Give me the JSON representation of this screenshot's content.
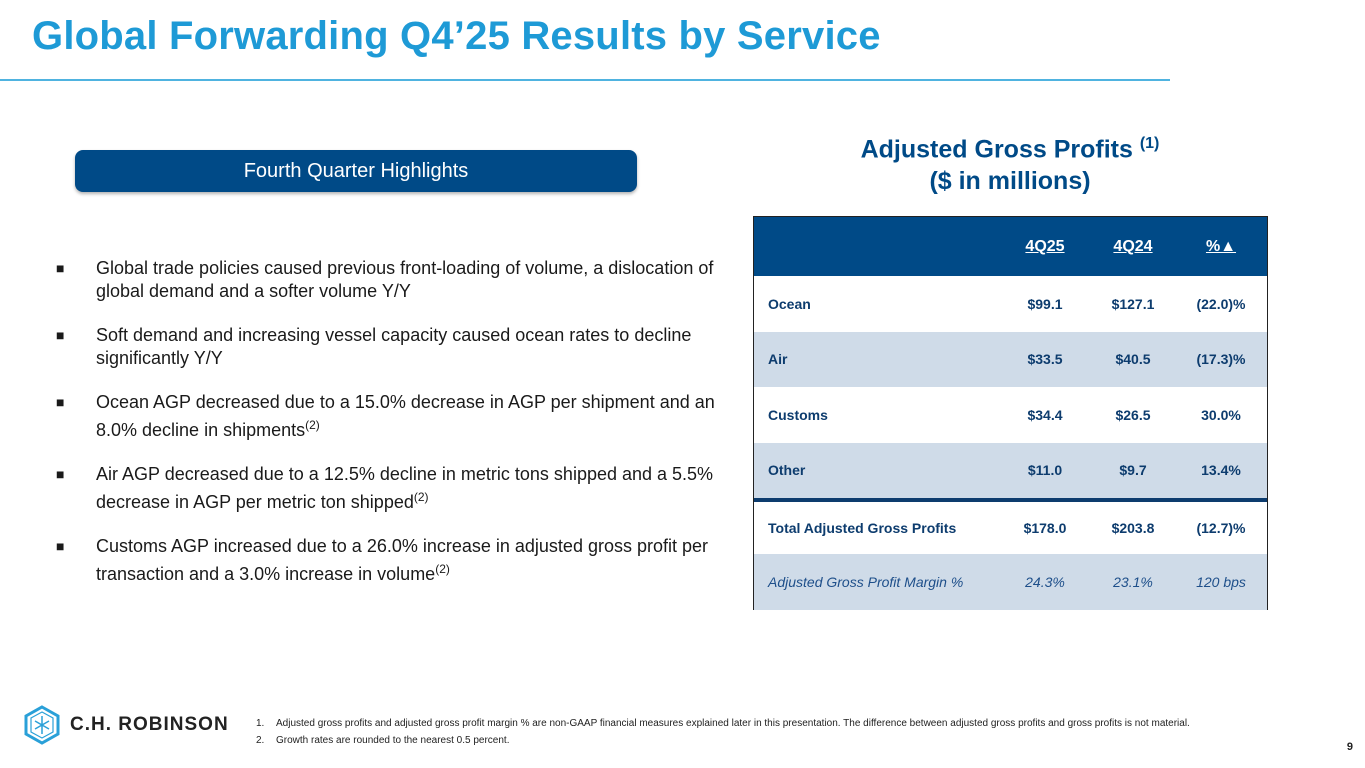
{
  "title": "Global Forwarding Q4’25 Results by Service",
  "highlights_label": "Fourth Quarter Highlights",
  "bullets": [
    {
      "text": "Global trade policies caused previous front-loading of volume, a dislocation of global demand and a softer volume Y/Y",
      "sup": ""
    },
    {
      "text": "Soft demand and increasing vessel capacity caused ocean rates to decline significantly Y/Y",
      "sup": ""
    },
    {
      "text": "Ocean AGP decreased due to a 15.0% decrease in AGP per shipment and an 8.0% decline in shipments",
      "sup": "(2)"
    },
    {
      "text": "Air AGP decreased due to a 12.5% decline in metric tons shipped and a 5.5% decrease in AGP per metric ton shipped",
      "sup": "(2)"
    },
    {
      "text": "Customs AGP increased due to a 26.0% increase in adjusted gross profit per transaction and a 3.0% increase in volume",
      "sup": "(2)"
    }
  ],
  "bullet_glyph": "■",
  "agp": {
    "title": "Adjusted Gross Profits",
    "title_sup": "(1)",
    "subtitle": "($ in millions)"
  },
  "table": {
    "headers": [
      "",
      "4Q25",
      "4Q24",
      "%▲"
    ],
    "rows": [
      [
        "Ocean",
        "$99.1",
        "$127.1",
        "(22.0)%"
      ],
      [
        "Air",
        "$33.5",
        "$40.5",
        "(17.3)%"
      ],
      [
        "Customs",
        "$34.4",
        "$26.5",
        "30.0%"
      ],
      [
        "Other",
        "$11.0",
        "$9.7",
        "13.4%"
      ],
      [
        "Total Adjusted Gross Profits",
        "$178.0",
        "$203.8",
        "(12.7)%"
      ],
      [
        "Adjusted Gross Profit Margin %",
        "24.3%",
        "23.1%",
        "120 bps"
      ]
    ]
  },
  "logo": "C.H. ROBINSON",
  "footnotes": [
    {
      "n": "1.",
      "text": "Adjusted gross profits and adjusted gross profit margin % are non-GAAP financial measures explained later in this presentation. The difference between adjusted gross profits and gross profits is not material."
    },
    {
      "n": "2.",
      "text": "Growth rates are rounded to the nearest 0.5 percent."
    }
  ],
  "page_number": "9",
  "colors": {
    "title": "#1e9ad6",
    "navy": "#004a87",
    "alt_row": "#cfdbe8"
  }
}
